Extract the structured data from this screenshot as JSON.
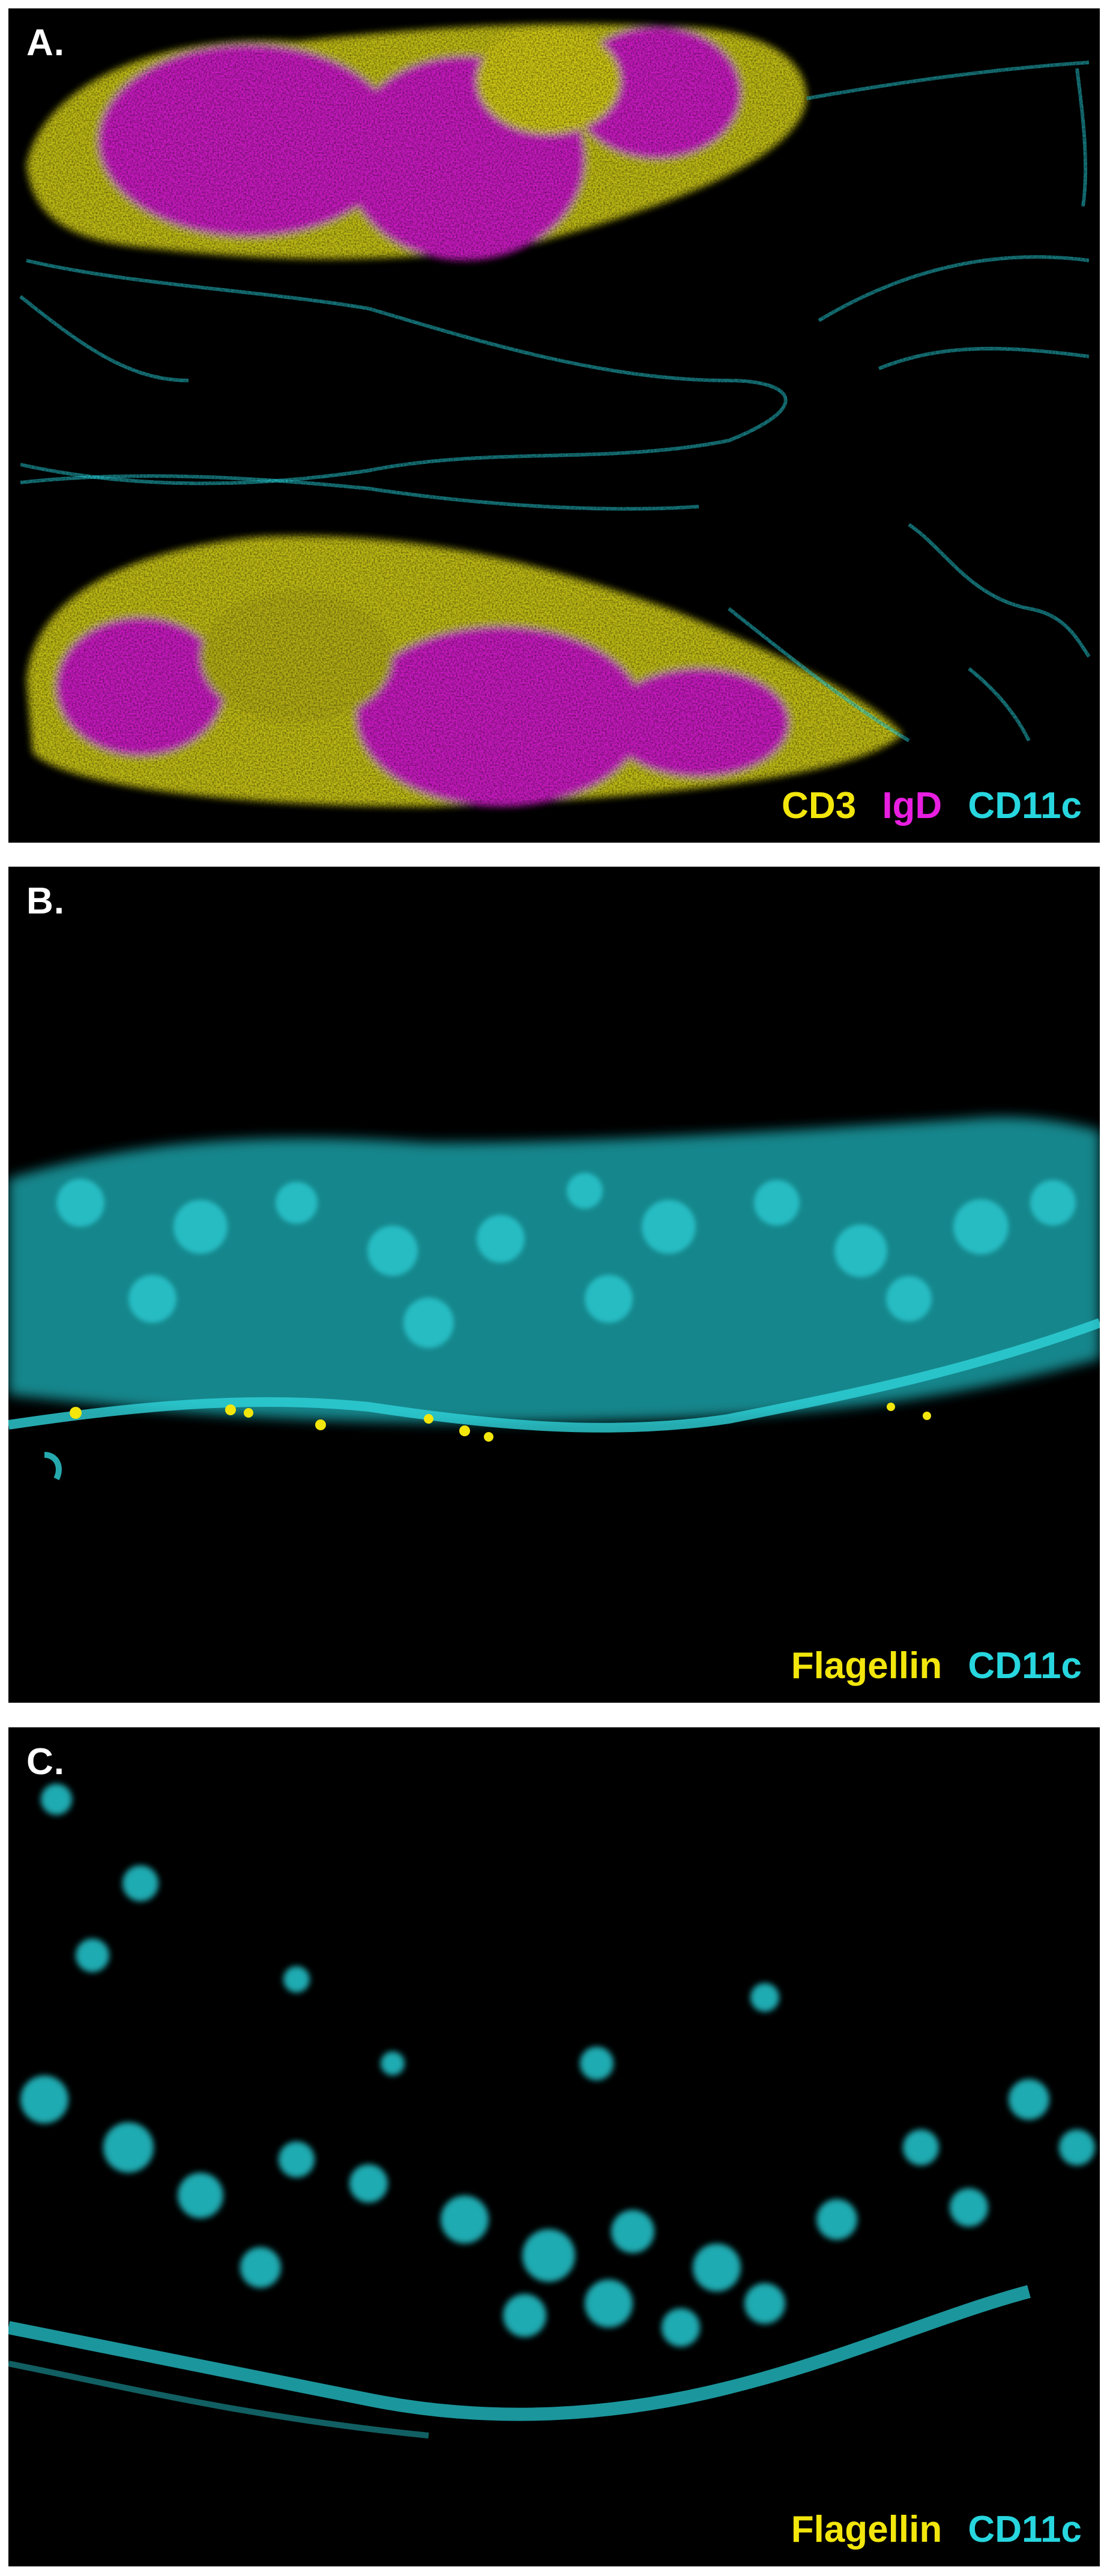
{
  "panels": [
    {
      "id": "A",
      "label": "A.",
      "legend": [
        {
          "text": "CD3",
          "color": "#f2e60c"
        },
        {
          "text": "IgD",
          "color": "#e81ee0"
        },
        {
          "text": "CD11c",
          "color": "#27d6de"
        }
      ]
    },
    {
      "id": "B",
      "label": "B.",
      "legend": [
        {
          "text": "Flagellin",
          "color": "#f2e60c"
        },
        {
          "text": "CD11c",
          "color": "#27d6de"
        }
      ]
    },
    {
      "id": "C",
      "label": "C.",
      "legend": [
        {
          "text": "Flagellin",
          "color": "#f2e60c"
        },
        {
          "text": "CD11c",
          "color": "#27d6de"
        }
      ]
    }
  ],
  "colors": {
    "yellow": "#f2e60c",
    "magenta": "#e81ee0",
    "cyan": "#27d6de",
    "background": "#000000"
  }
}
